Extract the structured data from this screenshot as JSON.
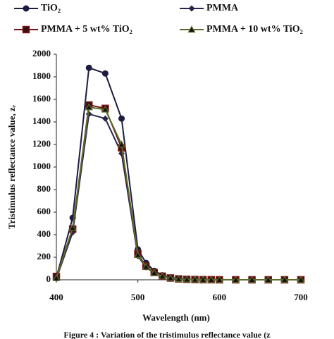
{
  "chart_data": {
    "type": "line",
    "x_label": "Wavelength (nm)",
    "y_label": "Tristimulus reflectance value, zᵣ",
    "caption": "Figure 4 : Variation of the tristimulus reflectance value (z",
    "x": [
      400,
      420,
      440,
      460,
      480,
      500,
      510,
      520,
      530,
      540,
      550,
      560,
      570,
      580,
      590,
      600,
      620,
      640,
      660,
      680,
      700
    ],
    "series": [
      {
        "name": "TiO₂",
        "color": "#1c1c40",
        "marker": "circle",
        "values": [
          20,
          550,
          1880,
          1830,
          1430,
          270,
          150,
          80,
          40,
          20,
          10,
          5,
          3,
          2,
          1,
          1,
          0,
          0,
          0,
          0,
          0
        ]
      },
      {
        "name": "PMMA",
        "color": "#26264a",
        "marker": "diamond",
        "values": [
          10,
          420,
          1470,
          1430,
          1120,
          210,
          110,
          60,
          30,
          15,
          8,
          4,
          2,
          1,
          1,
          0,
          0,
          0,
          0,
          0,
          0
        ]
      },
      {
        "name": "PMMA + 5 wt% TiO₂",
        "color": "#7a1414",
        "marker": "square",
        "values": [
          30,
          450,
          1550,
          1520,
          1170,
          230,
          120,
          65,
          32,
          16,
          8,
          4,
          2,
          1,
          1,
          0,
          0,
          0,
          0,
          0,
          0
        ]
      },
      {
        "name": "PMMA + 10 wt% TiO₂",
        "color": "#5a6b2a",
        "marker": "triangle",
        "values": [
          15,
          460,
          1530,
          1510,
          1200,
          220,
          115,
          62,
          30,
          15,
          7,
          3,
          2,
          1,
          1,
          0,
          0,
          0,
          0,
          0,
          0
        ]
      }
    ],
    "xlim": [
      400,
      700
    ],
    "xticks": [
      400,
      500,
      600,
      700
    ],
    "ylim": [
      0,
      2000
    ],
    "yticks": [
      0,
      200,
      400,
      600,
      800,
      1000,
      1200,
      1400,
      1600,
      1800,
      2000
    ],
    "grid": false
  }
}
